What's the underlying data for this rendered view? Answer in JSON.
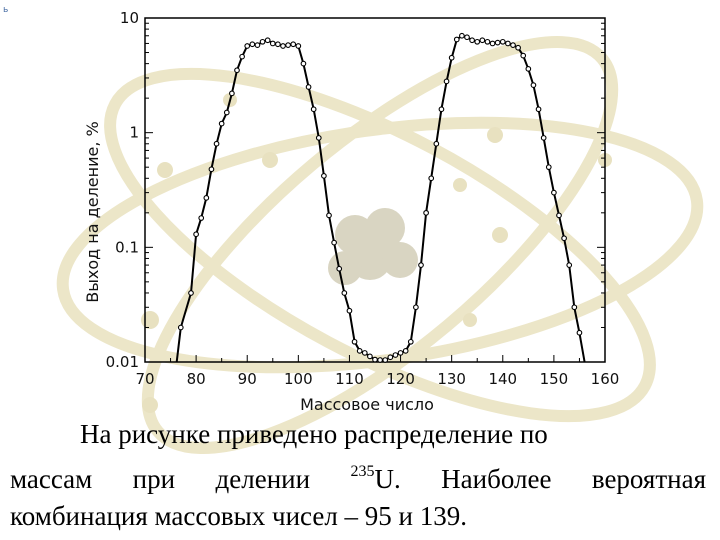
{
  "chart_data": {
    "type": "line",
    "xlabel": "Массовое число",
    "ylabel": "Выход на деление, %",
    "xlim": [
      70,
      160
    ],
    "ylim": [
      0.01,
      10
    ],
    "y_scale": "log",
    "x_ticks": [
      "70",
      "80",
      "90",
      "100",
      "110",
      "120",
      "130",
      "140",
      "150",
      "160"
    ],
    "y_ticks": [
      "10",
      "1",
      "0.1",
      "0.01"
    ],
    "grid": false,
    "series": [
      {
        "marker": "circle",
        "x": [
          77,
          79,
          80,
          81,
          82,
          83,
          84,
          85,
          86,
          87,
          88,
          89,
          90,
          91,
          92,
          93,
          94,
          95,
          96,
          97,
          98,
          99,
          100,
          101,
          102,
          103,
          104,
          105,
          106,
          107,
          108,
          109,
          110,
          111,
          112,
          113,
          114,
          115,
          116,
          117,
          118,
          119,
          120,
          121,
          122,
          123,
          124,
          125,
          126,
          127,
          128,
          129,
          130,
          131,
          132,
          133,
          134,
          135,
          136,
          137,
          138,
          139,
          140,
          141,
          142,
          143,
          144,
          145,
          146,
          147,
          148,
          149,
          150,
          151,
          152,
          153,
          154,
          155,
          156
        ],
        "y": [
          0.02,
          0.04,
          0.13,
          0.18,
          0.27,
          0.48,
          0.8,
          1.2,
          1.5,
          2.2,
          3.5,
          4.6,
          5.7,
          5.9,
          5.8,
          6.2,
          6.4,
          6.0,
          5.9,
          5.7,
          5.8,
          5.9,
          5.7,
          4.0,
          2.5,
          1.6,
          0.9,
          0.42,
          0.19,
          0.11,
          0.065,
          0.04,
          0.028,
          0.015,
          0.0125,
          0.012,
          0.0112,
          0.0105,
          0.0104,
          0.0104,
          0.011,
          0.0115,
          0.012,
          0.0125,
          0.015,
          0.03,
          0.07,
          0.2,
          0.4,
          0.8,
          1.6,
          2.8,
          4.5,
          6.5,
          7.0,
          6.8,
          6.4,
          6.2,
          6.4,
          6.2,
          6.0,
          6.1,
          6.2,
          6.0,
          5.8,
          5.5,
          4.7,
          3.6,
          2.6,
          1.6,
          0.9,
          0.5,
          0.3,
          0.19,
          0.12,
          0.07,
          0.03,
          0.018,
          0.009
        ]
      }
    ]
  },
  "caption": {
    "line1": "На рисунке приведено распределение по",
    "line2_pre": "массам при делении ",
    "line2_sup": "235",
    "line2_post": "U. Наиболее вероятная",
    "line3": "комбинация массовых чисел – 95 и 139."
  }
}
